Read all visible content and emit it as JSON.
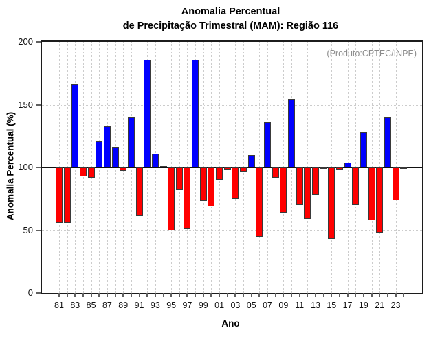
{
  "title": {
    "line1": "Anomalia Percentual",
    "line2": "de Precipitação Trimestral (MAM): Região 116"
  },
  "annotation": "(Produto:CPTEC/INPE)",
  "chart_data": {
    "type": "bar",
    "title": "Anomalia Percentual de Precipitação Trimestral (MAM): Região 116",
    "xlabel": "Ano",
    "ylabel": "Anomalia Percentual (%)",
    "ylim": [
      0,
      200
    ],
    "y_ticks": [
      0,
      50,
      100,
      150,
      200
    ],
    "baseline": 100,
    "legend": null,
    "grid": {
      "horizontal_dotted_at": [
        50,
        100,
        150
      ],
      "vertical_dotted_at_every_year": true
    },
    "categories": [
      "81",
      "82",
      "83",
      "84",
      "85",
      "86",
      "87",
      "88",
      "89",
      "90",
      "91",
      "92",
      "93",
      "94",
      "95",
      "96",
      "97",
      "98",
      "99",
      "00",
      "01",
      "02",
      "03",
      "04",
      "05",
      "06",
      "07",
      "08",
      "09",
      "10",
      "11",
      "12",
      "13",
      "14",
      "15",
      "16",
      "17",
      "18",
      "19",
      "20",
      "21",
      "22",
      "23",
      "24"
    ],
    "x_tick_labels_shown": [
      "81",
      "83",
      "85",
      "87",
      "89",
      "91",
      "93",
      "95",
      "97",
      "99",
      "01",
      "03",
      "05",
      "07",
      "09",
      "11",
      "13",
      "15",
      "17",
      "19",
      "21",
      "23"
    ],
    "values": [
      56,
      56,
      166,
      93,
      92,
      121,
      133,
      116,
      97,
      140,
      61,
      186,
      111,
      101,
      50,
      82,
      51,
      186,
      73,
      69,
      90,
      98,
      75,
      96,
      110,
      45,
      136,
      92,
      64,
      154,
      70,
      59,
      78,
      99,
      43,
      98,
      104,
      70,
      128,
      58,
      48,
      140,
      74,
      99
    ],
    "colors": {
      "above_baseline": "#0000ff",
      "below_baseline": "#ff0000",
      "bar_border": "#3a3a3a",
      "axis": "#1c1c1c",
      "grid": "#cccccc",
      "annotation_text": "#8c8c8c"
    }
  }
}
